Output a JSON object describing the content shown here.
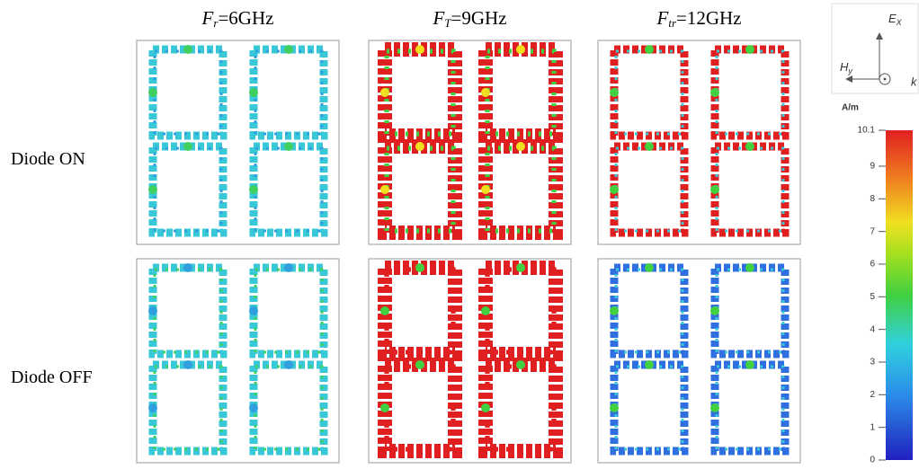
{
  "headers": [
    {
      "symbol": "F",
      "subscript": "r",
      "rest": "=6GHz"
    },
    {
      "symbol": "F",
      "subscript": "T",
      "rest": "=9GHz"
    },
    {
      "symbol": "F",
      "subscript": "tr",
      "rest": "=12GHz"
    }
  ],
  "rows": [
    "Diode ON",
    "Diode OFF"
  ],
  "axes": {
    "e": "E",
    "e_sub": "X",
    "h": "H",
    "h_sub": "y",
    "k": "k"
  },
  "colorbar": {
    "unit": "A/m",
    "lim": [
      0,
      10.1
    ],
    "ticks": [
      0,
      1,
      2,
      3,
      4,
      5,
      6,
      7,
      8,
      9,
      10.1
    ]
  }
}
